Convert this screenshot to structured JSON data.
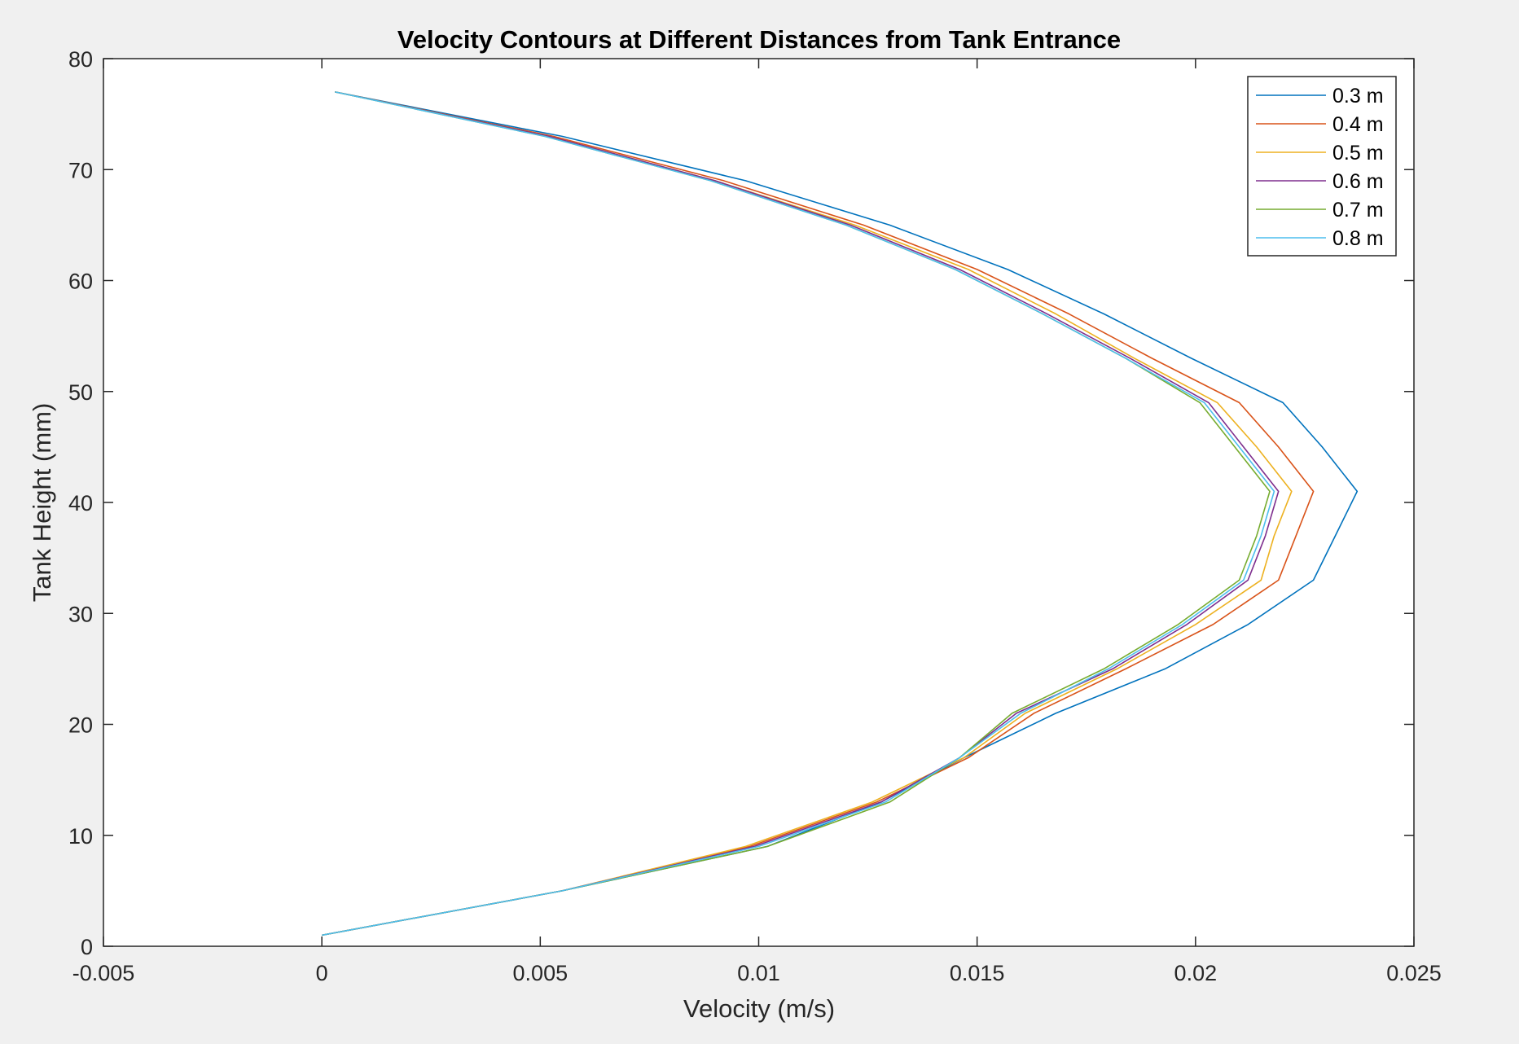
{
  "chart_data": {
    "type": "line",
    "title": "Velocity Contours at Different Distances from Tank Entrance",
    "xlabel": "Velocity (m/s)",
    "ylabel": "Tank Height (mm)",
    "xlim": [
      -0.005,
      0.025
    ],
    "ylim": [
      0,
      80
    ],
    "xticks": [
      -0.005,
      0,
      0.005,
      0.01,
      0.015,
      0.02,
      0.025
    ],
    "xtick_labels": [
      "-0.005",
      "0",
      "0.005",
      "0.01",
      "0.015",
      "0.02",
      "0.025"
    ],
    "yticks": [
      0,
      10,
      20,
      30,
      40,
      50,
      60,
      70,
      80
    ],
    "ytick_labels": [
      "0",
      "10",
      "20",
      "30",
      "40",
      "50",
      "60",
      "70",
      "80"
    ],
    "grid": false,
    "legend_position": "top-right",
    "y": [
      1,
      5,
      9,
      13,
      17,
      21,
      25,
      29,
      33,
      37,
      41,
      45,
      49,
      53,
      57,
      61,
      65,
      69,
      73,
      77
    ],
    "series": [
      {
        "name": "0.3 m",
        "color": "#0072BD",
        "values": [
          0.0,
          0.0055,
          0.0102,
          0.0128,
          0.0147,
          0.0168,
          0.0193,
          0.0212,
          0.0227,
          0.0232,
          0.0237,
          0.0229,
          0.022,
          0.0199,
          0.0179,
          0.0157,
          0.013,
          0.0097,
          0.0055,
          0.0003
        ]
      },
      {
        "name": "0.4 m",
        "color": "#D95319",
        "values": [
          0.0,
          0.0055,
          0.0098,
          0.0127,
          0.0148,
          0.0163,
          0.0184,
          0.0204,
          0.0219,
          0.0223,
          0.0227,
          0.0219,
          0.021,
          0.019,
          0.0171,
          0.015,
          0.0124,
          0.0092,
          0.0053,
          0.0003
        ]
      },
      {
        "name": "0.5 m",
        "color": "#EDB120",
        "values": [
          0.0,
          0.0055,
          0.0097,
          0.0126,
          0.0147,
          0.0161,
          0.0182,
          0.02,
          0.0215,
          0.0218,
          0.0222,
          0.0214,
          0.0205,
          0.0186,
          0.0168,
          0.0148,
          0.0122,
          0.009,
          0.0052,
          0.0003
        ]
      },
      {
        "name": "0.6 m",
        "color": "#7E2F8E",
        "values": [
          0.0,
          0.0055,
          0.0099,
          0.0128,
          0.0146,
          0.0159,
          0.0181,
          0.0198,
          0.0212,
          0.0216,
          0.0219,
          0.0211,
          0.0203,
          0.0185,
          0.0166,
          0.0146,
          0.0121,
          0.009,
          0.0052,
          0.0003
        ]
      },
      {
        "name": "0.7 m",
        "color": "#77AC30",
        "values": [
          0.0,
          0.0055,
          0.0102,
          0.013,
          0.0146,
          0.0158,
          0.0179,
          0.0196,
          0.021,
          0.0214,
          0.0217,
          0.0209,
          0.0201,
          0.0184,
          0.0165,
          0.0145,
          0.012,
          0.0089,
          0.0051,
          0.0003
        ]
      },
      {
        "name": "0.8 m",
        "color": "#4DBEEE",
        "values": [
          0.0,
          0.0055,
          0.01,
          0.0129,
          0.0146,
          0.016,
          0.018,
          0.0197,
          0.0211,
          0.0215,
          0.0218,
          0.021,
          0.0202,
          0.0184,
          0.0165,
          0.0145,
          0.012,
          0.0089,
          0.0051,
          0.0003
        ]
      }
    ]
  }
}
